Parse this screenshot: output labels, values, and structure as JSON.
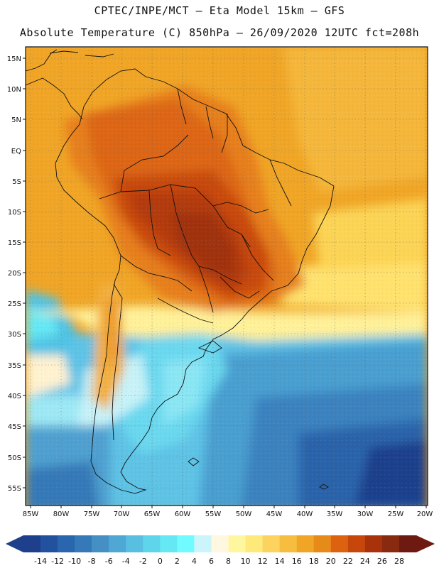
{
  "header": {
    "line1": "CPTEC/INPE/MCT –  Eta Model 15km – GFS",
    "line2": "Absolute Temperature (C) 850hPa – 26/09/2020 12UTC fct=208h"
  },
  "axes": {
    "lat_labels": [
      "15N",
      "10N",
      "5N",
      "EQ",
      "5S",
      "10S",
      "15S",
      "20S",
      "25S",
      "30S",
      "35S",
      "40S",
      "45S",
      "50S",
      "55S"
    ],
    "lon_labels": [
      "85W",
      "80W",
      "75W",
      "70W",
      "65W",
      "60W",
      "55W",
      "50W",
      "45W",
      "40W",
      "35W",
      "30W",
      "25W",
      "20W"
    ]
  },
  "colorbar": {
    "labels": [
      "-14",
      "-12",
      "-10",
      "-8",
      "-6",
      "-4",
      "-2",
      "0",
      "2",
      "4",
      "6",
      "8",
      "10",
      "12",
      "14",
      "16",
      "18",
      "20",
      "22",
      "24",
      "26",
      "28"
    ],
    "colors": [
      "#1e3f8c",
      "#22529e",
      "#2a66ad",
      "#3679b8",
      "#4490c5",
      "#4fa8d3",
      "#59bfe0",
      "#5fd5ec",
      "#66e8f4",
      "#6ffbff",
      "#ccf5fb",
      "#fff7e0",
      "#fff7a0",
      "#ffe97a",
      "#fdd35f",
      "#f7bd3f",
      "#f0a526",
      "#e68a1a",
      "#dd6210",
      "#c6460c",
      "#a8330a",
      "#882a10",
      "#6e1a10"
    ],
    "low_color": "#1e3f8c",
    "high_color": "#6e1a10"
  }
}
